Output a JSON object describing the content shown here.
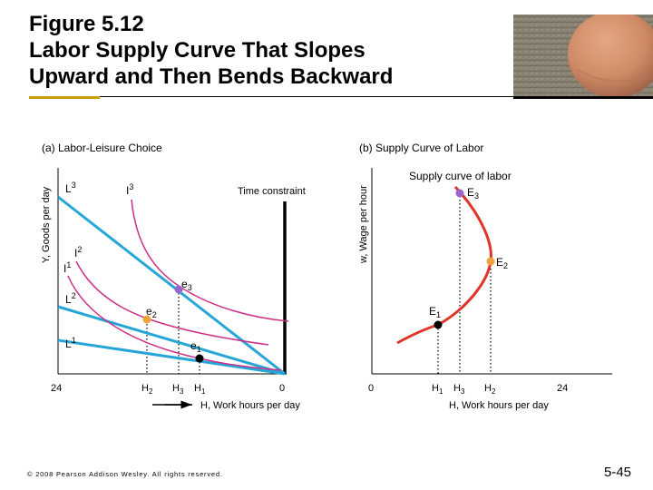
{
  "slide": {
    "title_lines": [
      "Figure 5.12",
      "Labor Supply Curve That Slopes",
      "Upward and Then Bends Backward"
    ],
    "copyright": "© 2008 Pearson Addison Wesley. All rights reserved.",
    "page_number": "5-45"
  },
  "colors": {
    "budget_line": "#25a6d6",
    "indifference_curve": "#cc2f86",
    "supply_curve": "#e0362a",
    "point_e2": "#f2a23a",
    "point_e3": "#9966cc",
    "point_e1": "#000000",
    "axis_arrow": "#000000"
  },
  "chart_data": [
    {
      "type": "line",
      "title": "(a) Labor-Leisure Choice",
      "ylabel": "Y, Goods per day",
      "xlabel": "H, Work hours per day",
      "x_direction": "work hours increase from right to left",
      "x_tick_labels": [
        "24",
        "H2",
        "H3",
        "H1",
        "0"
      ],
      "x_range": [
        24,
        0
      ],
      "grid": false,
      "annotations": [
        "Time constraint"
      ],
      "budget_lines": [
        {
          "name": "L1",
          "y_intercept_rank": 1
        },
        {
          "name": "L2",
          "y_intercept_rank": 2
        },
        {
          "name": "L3",
          "y_intercept_rank": 3
        }
      ],
      "indifference_curves": [
        "I1",
        "I2",
        "I3"
      ],
      "points": [
        {
          "name": "e1",
          "at_x_tick": "H1"
        },
        {
          "name": "e2",
          "at_x_tick": "H2"
        },
        {
          "name": "e3",
          "at_x_tick": "H3"
        }
      ]
    },
    {
      "type": "line",
      "title": "(b) Supply Curve of Labor",
      "ylabel": "w, Wage per hour",
      "xlabel": "H, Work hours per day",
      "x_tick_labels": [
        "0",
        "H1",
        "H3",
        "H2",
        "24"
      ],
      "x_range": [
        0,
        24
      ],
      "grid": false,
      "series": [
        {
          "name": "Supply curve of labor",
          "shape": "upward sloping, then bending backward"
        }
      ],
      "points": [
        {
          "name": "E1",
          "at_x_tick": "H1"
        },
        {
          "name": "E2",
          "at_x_tick": "H2"
        },
        {
          "name": "E3",
          "at_x_tick": "H3"
        }
      ]
    }
  ]
}
